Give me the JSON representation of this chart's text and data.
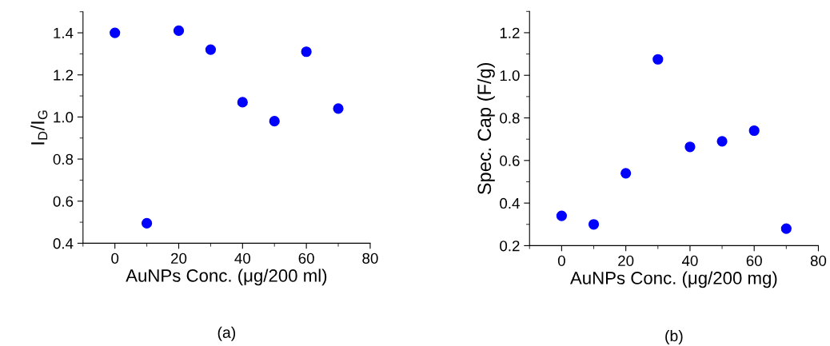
{
  "chart_data": [
    {
      "type": "scatter",
      "xlabel": "AuNPs Conc. (μg/200 ml)",
      "ylabel": "I$_{D}$/I$_{G}$",
      "annotations": [
        "(a)"
      ],
      "x": [
        0,
        10,
        20,
        30,
        40,
        50,
        60,
        70
      ],
      "series": [
        {
          "color": "#0000ff",
          "values": [
            1.4,
            0.495,
            1.41,
            1.32,
            1.07,
            0.98,
            1.31,
            1.04
          ]
        }
      ],
      "xlim": [
        -10,
        80
      ],
      "xticks": [
        0,
        20,
        40,
        60,
        80
      ],
      "ylim": [
        0.4,
        1.5
      ],
      "yticks": [
        0.4,
        0.6,
        0.8,
        {
          "value": 1.0,
          "label": "1.0"
        },
        1.2,
        1.4
      ],
      "marker": "circle",
      "grid": false,
      "legend": false
    },
    {
      "type": "scatter",
      "xlabel": "AuNPs Conc. (μg/200 mg)",
      "ylabel": "Spec. Cap (F/g)",
      "annotations": [
        "(b)"
      ],
      "x": [
        0,
        10,
        20,
        30,
        40,
        50,
        60,
        70
      ],
      "series": [
        {
          "color": "#0000ff",
          "values": [
            0.34,
            0.3,
            0.54,
            1.075,
            0.664,
            0.69,
            0.74,
            0.28
          ]
        }
      ],
      "xlim": [
        -10,
        80
      ],
      "xticks": [
        0,
        20,
        40,
        60,
        80
      ],
      "ylim": [
        0.2,
        1.3
      ],
      "yticks": [
        0.2,
        0.4,
        0.6,
        0.8,
        {
          "value": 1.0,
          "label": "1.0"
        },
        1.2
      ],
      "marker": "circle",
      "grid": false,
      "legend": false
    }
  ]
}
